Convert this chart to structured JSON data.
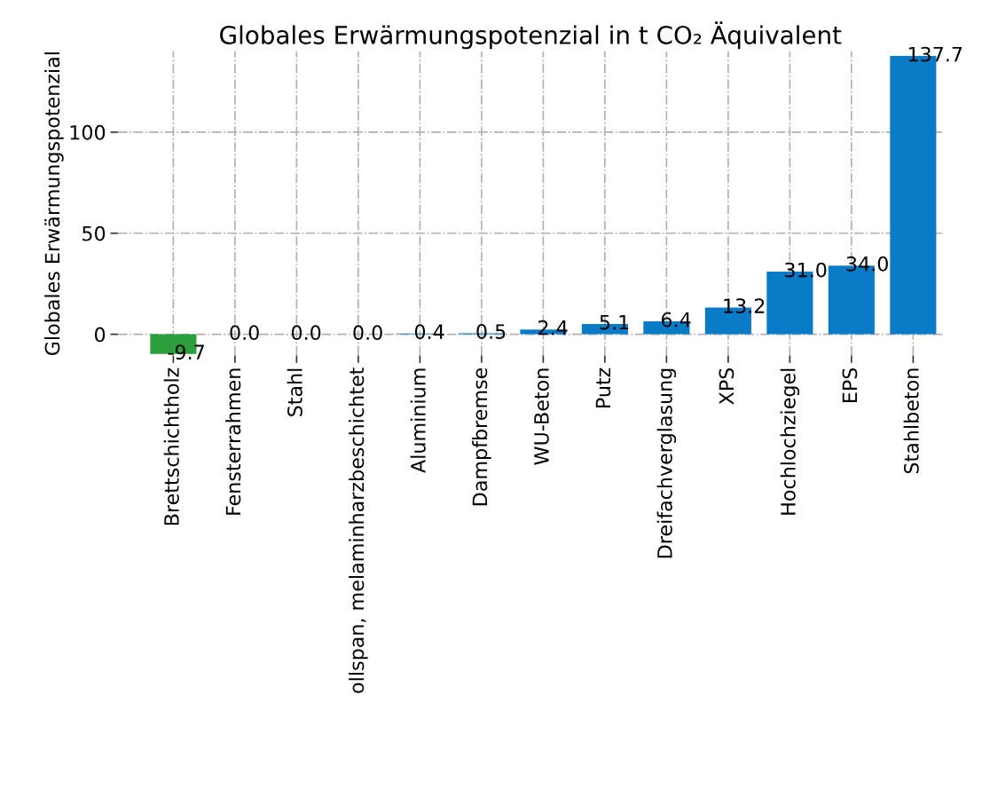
{
  "chart_data": {
    "type": "bar",
    "title": "Globales Erwärmungspotenzial in t CO₂ Äquivalent",
    "ylabel": "Globales Erwärmungspotenzial",
    "categories": [
      "Brettschichtholz",
      "Fensterrahmen",
      "Stahl",
      "ollspan, melaminharzbeschichtet",
      "Aluminium",
      "Dampfbremse",
      "WU-Beton",
      "Putz",
      "Dreifachverglasung",
      "XPS",
      "Hochlochziegel",
      "EPS",
      "Stahlbeton"
    ],
    "values": [
      -9.7,
      0.0,
      0.0,
      0.0,
      0.4,
      0.5,
      2.4,
      5.1,
      6.4,
      13.2,
      31.0,
      34.0,
      137.7
    ],
    "colors": [
      "#2ca03c",
      "#0a7bc7",
      "#0a7bc7",
      "#0a7bc7",
      "#0a7bc7",
      "#0a7bc7",
      "#0a7bc7",
      "#0a7bc7",
      "#0a7bc7",
      "#0a7bc7",
      "#0a7bc7",
      "#0a7bc7",
      "#0a7bc7"
    ],
    "ylim": [
      -10.5,
      140
    ],
    "yticks": [
      0,
      50,
      100
    ],
    "value_labels": [
      "-9.7",
      "0.0",
      "0.0",
      "0.0",
      "0.4",
      "0.5",
      "2.4",
      "5.1",
      "6.4",
      "13.2",
      "31.0",
      "34.0",
      "137.7"
    ],
    "grid": true
  }
}
